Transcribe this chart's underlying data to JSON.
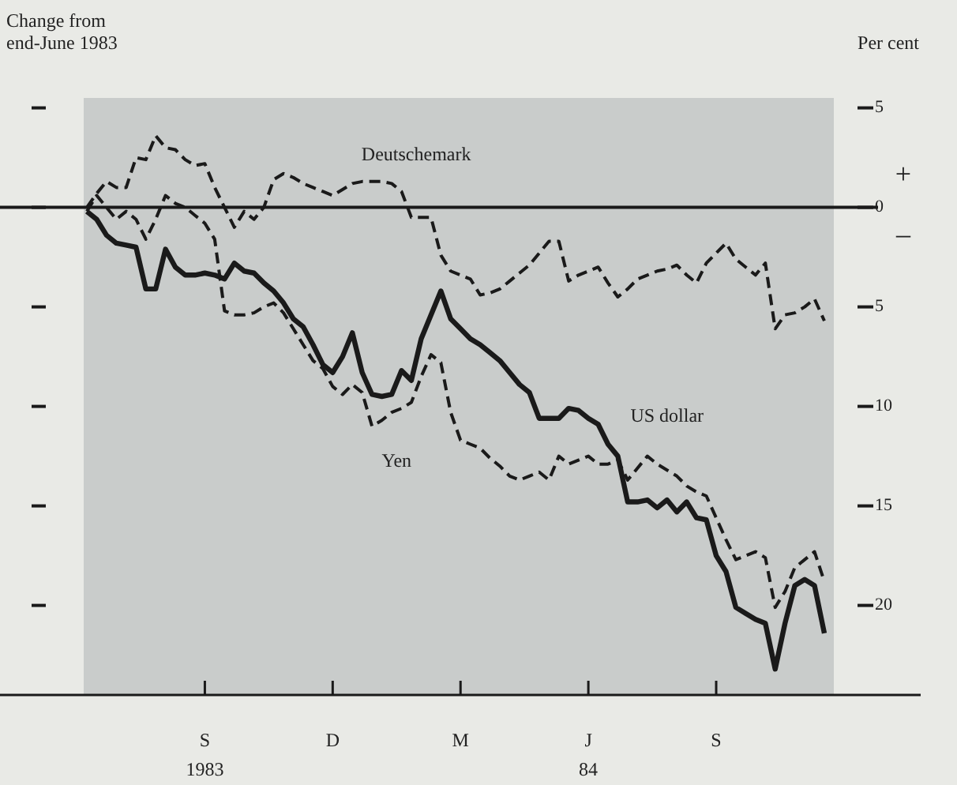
{
  "chart_data": {
    "type": "line",
    "ylabel": "Change from\nend-June 1983",
    "y2label": "Per cent",
    "annotations": [
      "+",
      "–",
      "1983",
      "84"
    ],
    "categories": [
      null,
      null,
      null,
      null,
      null,
      null,
      null,
      null,
      null,
      null,
      null,
      null,
      "S",
      null,
      null,
      null,
      null,
      null,
      null,
      null,
      null,
      null,
      null,
      null,
      null,
      "D",
      null,
      null,
      null,
      null,
      null,
      null,
      null,
      null,
      null,
      null,
      null,
      null,
      "M",
      null,
      null,
      null,
      null,
      null,
      null,
      null,
      null,
      null,
      null,
      null,
      null,
      "J",
      null,
      null,
      null,
      null,
      null,
      null,
      null,
      null,
      null,
      null,
      null,
      null,
      "S",
      null,
      null,
      null,
      null,
      null,
      null,
      null,
      null,
      null,
      null,
      null
    ],
    "ylim": [
      -24.5,
      5.5
    ],
    "yticks": [
      {
        "value": 5,
        "label": "5"
      },
      {
        "value": 0,
        "label": "0"
      },
      {
        "value": -5,
        "label": "5"
      },
      {
        "value": -10,
        "label": "10"
      },
      {
        "value": -15,
        "label": "15"
      },
      {
        "value": -20,
        "label": "20"
      }
    ],
    "grid": false,
    "legend": false,
    "ref_lines": [
      {
        "axis": "y",
        "value": 0,
        "color": "#1a1a1a"
      }
    ],
    "series": [
      {
        "name": "Deutschemark",
        "color": "#1a1a1a",
        "line_style": "dashed",
        "values": [
          0,
          0.7,
          1.3,
          1.0,
          1.0,
          2.5,
          2.4,
          3.6,
          3.0,
          2.9,
          2.4,
          2.1,
          2.2,
          1.0,
          0,
          -1.0,
          -0.2,
          -0.6,
          0,
          1.4,
          1.7,
          1.5,
          1.2,
          1.0,
          0.8,
          0.6,
          0.9,
          1.2,
          1.3,
          1.3,
          1.3,
          1.2,
          0.8,
          -0.5,
          -0.5,
          -0.5,
          -2.4,
          -3.2,
          -3.4,
          -3.6,
          -4.4,
          -4.3,
          -4.1,
          -3.7,
          -3.3,
          -2.9,
          -2.3,
          -1.7,
          -1.7,
          -3.7,
          -3.4,
          -3.2,
          -3.0,
          -3.8,
          -4.5,
          -4.1,
          -3.6,
          -3.4,
          -3.2,
          -3.1,
          -2.9,
          -3.4,
          -3.8,
          -2.8,
          -2.3,
          -1.8,
          -2.6,
          -3.0,
          -3.4,
          -2.8,
          -6.1,
          -5.4,
          -5.3,
          -5.0,
          -4.6,
          -5.7
        ]
      },
      {
        "name": "US dollar",
        "color": "#1a1a1a",
        "line_style": "solid",
        "values": [
          -0.2,
          -0.6,
          -1.4,
          -1.8,
          -1.9,
          -2.0,
          -4.1,
          -4.1,
          -2.1,
          -3.0,
          -3.4,
          -3.4,
          -3.3,
          -3.4,
          -3.6,
          -2.8,
          -3.2,
          -3.3,
          -3.8,
          -4.2,
          -4.8,
          -5.6,
          -6.0,
          -6.9,
          -7.9,
          -8.3,
          -7.5,
          -6.3,
          -8.3,
          -9.4,
          -9.5,
          -9.4,
          -8.2,
          -8.7,
          -6.6,
          -5.4,
          -4.2,
          -5.6,
          -6.1,
          -6.6,
          -6.9,
          -7.3,
          -7.7,
          -8.3,
          -8.9,
          -9.3,
          -10.6,
          -10.6,
          -10.6,
          -10.1,
          -10.2,
          -10.6,
          -10.9,
          -11.9,
          -12.5,
          -14.8,
          -14.8,
          -14.7,
          -15.1,
          -14.7,
          -15.3,
          -14.8,
          -15.6,
          -15.7,
          -17.5,
          -18.3,
          -20.1,
          -20.4,
          -20.7,
          -20.9,
          -23.2,
          -20.9,
          -19.0,
          -18.7,
          -19.0,
          -21.4
        ]
      },
      {
        "name": "Yen",
        "color": "#1a1a1a",
        "line_style": "dashed",
        "values": [
          -0.2,
          0.6,
          0,
          -0.6,
          -0.2,
          -0.6,
          -1.6,
          -0.6,
          0.6,
          0.2,
          0,
          -0.4,
          -0.8,
          -1.6,
          -5.2,
          -5.4,
          -5.4,
          -5.3,
          -5.0,
          -4.8,
          -5.3,
          -6.1,
          -6.9,
          -7.7,
          -8.1,
          -9.0,
          -9.4,
          -8.9,
          -9.3,
          -11.0,
          -10.7,
          -10.3,
          -10.1,
          -9.8,
          -8.5,
          -7.4,
          -7.8,
          -10.3,
          -11.7,
          -11.9,
          -12.1,
          -12.6,
          -13.0,
          -13.5,
          -13.7,
          -13.5,
          -13.3,
          -13.7,
          -12.5,
          -12.9,
          -12.7,
          -12.5,
          -12.9,
          -12.9,
          -12.7,
          -13.7,
          -13.1,
          -12.5,
          -12.9,
          -13.2,
          -13.5,
          -14.0,
          -14.3,
          -14.5,
          -15.6,
          -16.7,
          -17.7,
          -17.5,
          -17.3,
          -17.6,
          -20.1,
          -19.3,
          -18.1,
          -17.7,
          -17.3,
          -18.8
        ]
      }
    ]
  }
}
